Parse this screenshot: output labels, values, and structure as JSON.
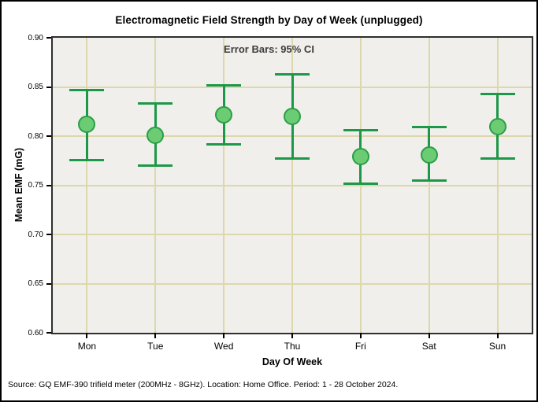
{
  "figure": {
    "title": "Electromagnetic Field Strength by Day of Week (unplugged)",
    "annotation": "Error Bars: 95% CI",
    "footer": "Source: GQ EMF-390 trifield meter (200MHz - 8GHz). Location: Home Office. Period: 1 - 28 October 2024."
  },
  "chart_data": {
    "type": "scatter",
    "subtype": "point-estimates-with-error-bars",
    "title": "Electromagnetic Field Strength by Day of Week (unplugged)",
    "annotation": "Error Bars: 95% CI",
    "error_bars": "95% CI",
    "categories": [
      "Mon",
      "Tue",
      "Wed",
      "Thu",
      "Fri",
      "Sat",
      "Sun"
    ],
    "series": [
      {
        "name": "Mean EMF",
        "means": [
          0.812,
          0.801,
          0.822,
          0.82,
          0.779,
          0.781,
          0.81
        ],
        "ci_low": [
          0.776,
          0.77,
          0.792,
          0.777,
          0.752,
          0.755,
          0.777
        ],
        "ci_high": [
          0.847,
          0.833,
          0.852,
          0.863,
          0.806,
          0.809,
          0.843
        ]
      }
    ],
    "xlabel": "Day Of Week",
    "ylabel": "Mean EMF (mG)",
    "ylim": [
      0.6,
      0.9
    ],
    "ytick_step": 0.05,
    "ytick_labels": [
      "0.90",
      "0.85",
      "0.80",
      "0.75",
      "0.70",
      "0.65",
      "0.60"
    ],
    "grid": true,
    "legend": "none"
  },
  "colors": {
    "marker_fill": "#6bcc74",
    "marker_stroke": "#2b9e47",
    "error_bar": "#1d9748",
    "gridline": "#ddd8ab",
    "plot_bg": "#f0efeb",
    "frame": "#2f2f2f",
    "annotation_text": "#3d3d3d",
    "title_text": "#000000"
  }
}
